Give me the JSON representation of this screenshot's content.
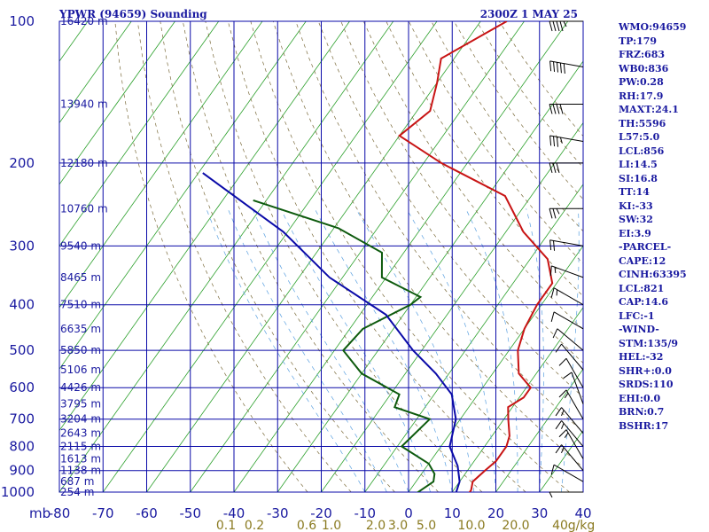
{
  "title_left": "YPWR (94659) Sounding",
  "title_right": "2300Z  1 MAY 25",
  "chart_data": {
    "type": "line",
    "subtype": "skew-T log-P sounding",
    "pressure_axis": {
      "ticks": [
        100,
        200,
        300,
        400,
        500,
        600,
        700,
        800,
        900,
        1000
      ],
      "label": "mb",
      "range": [
        100,
        1000
      ],
      "scale": "log"
    },
    "temperature_axis": {
      "ticks": [
        -80,
        -70,
        -60,
        -50,
        -40,
        -30,
        -20,
        -10,
        0,
        10,
        20,
        30,
        40
      ],
      "range": [
        -80,
        40
      ]
    },
    "height_labels": [
      {
        "p": 100,
        "label": "16420 m"
      },
      {
        "p": 150,
        "label": "13940 m"
      },
      {
        "p": 200,
        "label": "12180 m"
      },
      {
        "p": 250,
        "label": "10760 m"
      },
      {
        "p": 300,
        "label": "9540 m"
      },
      {
        "p": 350,
        "label": "8465 m"
      },
      {
        "p": 400,
        "label": "7510 m"
      },
      {
        "p": 450,
        "label": "6635 m"
      },
      {
        "p": 500,
        "label": "5850 m"
      },
      {
        "p": 550,
        "label": "5106 m"
      },
      {
        "p": 600,
        "label": "4426 m"
      },
      {
        "p": 650,
        "label": "3795 m"
      },
      {
        "p": 700,
        "label": "3204 m"
      },
      {
        "p": 750,
        "label": "2643 m"
      },
      {
        "p": 800,
        "label": "2115 m"
      },
      {
        "p": 850,
        "label": "1613 m"
      },
      {
        "p": 900,
        "label": "1138 m"
      },
      {
        "p": 950,
        "label": "687 m"
      },
      {
        "p": 1000,
        "label": "254 m"
      }
    ],
    "mixing_ratio_labels": [
      "0.1",
      "0.2",
      "0.6",
      "1.0",
      "2.0",
      "3.0",
      "5.0",
      "10.0",
      "20.0",
      "40",
      "g/kg"
    ],
    "series": [
      {
        "color": "#c81414",
        "points": [
          [
            100,
            -54
          ],
          [
            120,
            -63
          ],
          [
            135,
            -60
          ],
          [
            155,
            -57
          ],
          [
            175,
            -60
          ],
          [
            200,
            -46
          ],
          [
            235,
            -26
          ],
          [
            280,
            -16
          ],
          [
            320,
            -6
          ],
          [
            360,
            -1
          ],
          [
            400,
            -1
          ],
          [
            450,
            0
          ],
          [
            500,
            2
          ],
          [
            560,
            6
          ],
          [
            600,
            11
          ],
          [
            630,
            11
          ],
          [
            660,
            9
          ],
          [
            700,
            11
          ],
          [
            760,
            14
          ],
          [
            800,
            15
          ],
          [
            860,
            15
          ],
          [
            900,
            14
          ],
          [
            950,
            13
          ],
          [
            990,
            14
          ],
          [
            1005,
            14
          ]
        ]
      },
      {
        "color": "#0d5a0d",
        "points": [
          [
            240,
            -83
          ],
          [
            275,
            -59
          ],
          [
            310,
            -45
          ],
          [
            350,
            -41
          ],
          [
            385,
            -29
          ],
          [
            400,
            -30
          ],
          [
            450,
            -37
          ],
          [
            500,
            -38
          ],
          [
            560,
            -30
          ],
          [
            620,
            -18
          ],
          [
            660,
            -17
          ],
          [
            700,
            -7
          ],
          [
            800,
            -9
          ],
          [
            870,
            0
          ],
          [
            915,
            3
          ],
          [
            950,
            4
          ],
          [
            1005,
            2
          ]
        ]
      },
      {
        "color": "#0a0aa8",
        "points": [
          [
            210,
            -99
          ],
          [
            280,
            -71
          ],
          [
            350,
            -53
          ],
          [
            420,
            -34
          ],
          [
            500,
            -22
          ],
          [
            560,
            -13
          ],
          [
            620,
            -6
          ],
          [
            700,
            -1
          ],
          [
            800,
            2
          ],
          [
            880,
            7
          ],
          [
            950,
            10
          ],
          [
            1005,
            11
          ]
        ]
      }
    ],
    "wind_barbs_kt": [
      {
        "p": 100,
        "dir": 270,
        "spd": 45
      },
      {
        "p": 125,
        "dir": 280,
        "spd": 50
      },
      {
        "p": 150,
        "dir": 270,
        "spd": 40
      },
      {
        "p": 180,
        "dir": 280,
        "spd": 35
      },
      {
        "p": 200,
        "dir": 270,
        "spd": 30
      },
      {
        "p": 250,
        "dir": 270,
        "spd": 25
      },
      {
        "p": 300,
        "dir": 280,
        "spd": 20
      },
      {
        "p": 350,
        "dir": 290,
        "spd": 15
      },
      {
        "p": 400,
        "dir": 300,
        "spd": 15
      },
      {
        "p": 450,
        "dir": 300,
        "spd": 10
      },
      {
        "p": 500,
        "dir": 310,
        "spd": 10
      },
      {
        "p": 550,
        "dir": 320,
        "spd": 10
      },
      {
        "p": 600,
        "dir": 330,
        "spd": 10
      },
      {
        "p": 650,
        "dir": 340,
        "spd": 10
      },
      {
        "p": 700,
        "dir": 330,
        "spd": 15
      },
      {
        "p": 750,
        "dir": 320,
        "spd": 15
      },
      {
        "p": 800,
        "dir": 320,
        "spd": 15
      },
      {
        "p": 850,
        "dir": 330,
        "spd": 15
      },
      {
        "p": 900,
        "dir": 320,
        "spd": 15
      },
      {
        "p": 950,
        "dir": 300,
        "spd": 10
      },
      {
        "p": 1000,
        "dir": 270,
        "spd": 5
      }
    ]
  },
  "indices": [
    "WMO:94659",
    "TP:179",
    "FRZ:683",
    "WB0:836",
    "PW:0.28",
    "RH:17.9",
    "MAXT:24.1",
    "TH:5596",
    "L57:5.0",
    "LCL:856",
    "LI:14.5",
    "SI:16.8",
    "TT:14",
    "KI:-33",
    "SW:32",
    "EI:3.9",
    "-PARCEL-",
    "CAPE:12",
    "CINH:63395",
    "LCL:821",
    "CAP:14.6",
    "LFC:-1",
    "-WIND-",
    "STM:135/9",
    "HEL:-32",
    "SHR+:0.0",
    "SRDS:110",
    "EHI:0.0",
    "BRN:0.7",
    "BSHR:17"
  ]
}
